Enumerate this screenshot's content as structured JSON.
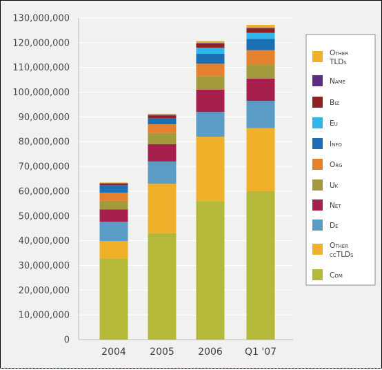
{
  "chart_data": {
    "type": "bar",
    "stacked": true,
    "categories": [
      "2004",
      "2005",
      "2006",
      "Q1 '07"
    ],
    "ylim": [
      0,
      130000000
    ],
    "ytick_labels": [
      "0",
      "10,000,000",
      "20,000,000",
      "30,000,000",
      "40,000,000",
      "50,000,000",
      "60,000,000",
      "70,000,000",
      "80,000,000",
      "90,000,000",
      "100,000,000",
      "110,000,000",
      "120,000,000",
      "130,000,000"
    ],
    "ytick_values": [
      0,
      10000000,
      20000000,
      30000000,
      40000000,
      50000000,
      60000000,
      70000000,
      80000000,
      90000000,
      100000000,
      110000000,
      120000000,
      130000000
    ],
    "grid": "horizontal",
    "legend_position": "right",
    "series": [
      {
        "name": "Com",
        "color": "#b5b93a",
        "values": [
          32800000,
          43000000,
          56000000,
          60000000
        ]
      },
      {
        "name": "Other ccTLDs",
        "color": "#f0b12a",
        "values": [
          7000000,
          20000000,
          26000000,
          25500000
        ]
      },
      {
        "name": "De",
        "color": "#5a9cc5",
        "values": [
          7800000,
          9000000,
          10000000,
          11000000
        ]
      },
      {
        "name": "Net",
        "color": "#a71f4d",
        "values": [
          5000000,
          7000000,
          9000000,
          9000000
        ]
      },
      {
        "name": "Uk",
        "color": "#a39a3e",
        "values": [
          3500000,
          4500000,
          5500000,
          5500000
        ]
      },
      {
        "name": "Org",
        "color": "#e5802c",
        "values": [
          3300000,
          3500000,
          5000000,
          6000000
        ]
      },
      {
        "name": "Info",
        "color": "#1b6fb5",
        "values": [
          3000000,
          2500000,
          4000000,
          4500000
        ]
      },
      {
        "name": "Eu",
        "color": "#30b5e8",
        "values": [
          0,
          0,
          2500000,
          2500000
        ]
      },
      {
        "name": "Biz",
        "color": "#8d2124",
        "values": [
          700000,
          1100000,
          1600000,
          1700000
        ]
      },
      {
        "name": "Name",
        "color": "#5c2d85",
        "values": [
          150000,
          250000,
          300000,
          300000
        ]
      },
      {
        "name": "Other TLDs",
        "color": "#f0b12a",
        "values": [
          250000,
          400000,
          800000,
          1200000
        ]
      }
    ],
    "legend_order": [
      {
        "lines": [
          "Other",
          "TLDs"
        ],
        "series": "Other TLDs"
      },
      {
        "lines": [
          "Name"
        ],
        "series": "Name"
      },
      {
        "lines": [
          "Biz"
        ],
        "series": "Biz"
      },
      {
        "lines": [
          "Eu"
        ],
        "series": "Eu"
      },
      {
        "lines": [
          "Info"
        ],
        "series": "Info"
      },
      {
        "lines": [
          "Org"
        ],
        "series": "Org"
      },
      {
        "lines": [
          "Uk"
        ],
        "series": "Uk"
      },
      {
        "lines": [
          "Net"
        ],
        "series": "Net"
      },
      {
        "lines": [
          "De"
        ],
        "series": "De"
      },
      {
        "lines": [
          "Other",
          "ccTLDs"
        ],
        "series": "Other ccTLDs"
      },
      {
        "lines": [
          "Com"
        ],
        "series": "Com"
      }
    ]
  },
  "colors": {
    "background": "#f1f1ef",
    "gridline": "#ffffff",
    "axis": "#bdbdbd"
  }
}
